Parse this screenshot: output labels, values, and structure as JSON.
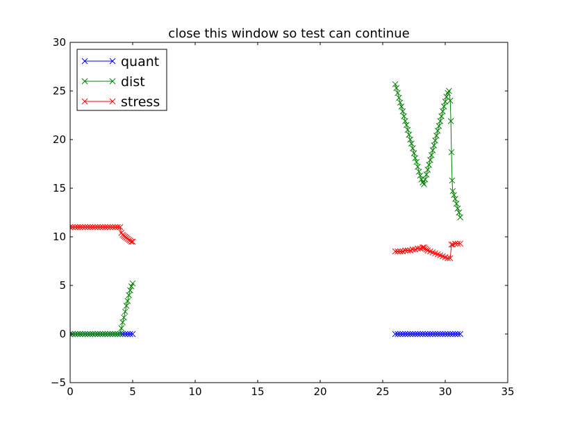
{
  "chart_data": {
    "type": "line",
    "title": "close this window so test can continue",
    "xlabel": "",
    "ylabel": "",
    "xlim": [
      0,
      35
    ],
    "ylim": [
      -5,
      30
    ],
    "xticks": [
      0,
      5,
      10,
      15,
      20,
      25,
      30,
      35
    ],
    "yticks": [
      -5,
      0,
      5,
      10,
      15,
      20,
      25,
      30
    ],
    "grid": false,
    "legend_position": "upper left",
    "marker": "x",
    "series": [
      {
        "name": "quant",
        "color": "#0000ff",
        "segments": [
          [
            [
              0.0,
              0
            ],
            [
              0.2,
              0
            ],
            [
              0.4,
              0
            ],
            [
              0.6,
              0
            ],
            [
              0.8,
              0
            ],
            [
              1.0,
              0
            ],
            [
              1.2,
              0
            ],
            [
              1.4,
              0
            ],
            [
              1.6,
              0
            ],
            [
              1.8,
              0
            ],
            [
              2.0,
              0
            ],
            [
              2.2,
              0
            ],
            [
              2.4,
              0
            ],
            [
              2.6,
              0
            ],
            [
              2.8,
              0
            ],
            [
              3.0,
              0
            ],
            [
              3.2,
              0
            ],
            [
              3.4,
              0
            ],
            [
              3.6,
              0
            ],
            [
              3.8,
              0
            ],
            [
              4.0,
              0
            ],
            [
              4.2,
              0
            ],
            [
              4.4,
              0
            ],
            [
              4.6,
              0
            ],
            [
              4.8,
              0
            ],
            [
              5.0,
              0
            ]
          ],
          [
            [
              26.0,
              0
            ],
            [
              26.2,
              0
            ],
            [
              26.4,
              0
            ],
            [
              26.6,
              0
            ],
            [
              26.8,
              0
            ],
            [
              27.0,
              0
            ],
            [
              27.2,
              0
            ],
            [
              27.4,
              0
            ],
            [
              27.6,
              0
            ],
            [
              27.8,
              0
            ],
            [
              28.0,
              0
            ],
            [
              28.2,
              0
            ],
            [
              28.4,
              0
            ],
            [
              28.6,
              0
            ],
            [
              28.8,
              0
            ],
            [
              29.0,
              0
            ],
            [
              29.2,
              0
            ],
            [
              29.4,
              0
            ],
            [
              29.6,
              0
            ],
            [
              29.8,
              0
            ],
            [
              30.0,
              0
            ],
            [
              30.2,
              0
            ],
            [
              30.4,
              0
            ],
            [
              30.6,
              0
            ],
            [
              30.8,
              0
            ],
            [
              31.0,
              0
            ],
            [
              31.2,
              0
            ]
          ]
        ]
      },
      {
        "name": "dist",
        "color": "#008000",
        "segments": [
          [
            [
              0.0,
              0
            ],
            [
              0.2,
              0
            ],
            [
              0.4,
              0
            ],
            [
              0.6,
              0
            ],
            [
              0.8,
              0
            ],
            [
              1.0,
              0
            ],
            [
              1.2,
              0
            ],
            [
              1.4,
              0
            ],
            [
              1.6,
              0
            ],
            [
              1.8,
              0
            ],
            [
              2.0,
              0
            ],
            [
              2.2,
              0
            ],
            [
              2.4,
              0
            ],
            [
              2.6,
              0
            ],
            [
              2.8,
              0
            ],
            [
              3.0,
              0
            ],
            [
              3.2,
              0
            ],
            [
              3.4,
              0
            ],
            [
              3.6,
              0
            ],
            [
              3.8,
              0
            ],
            [
              4.0,
              0
            ],
            [
              4.1,
              0.6
            ],
            [
              4.2,
              1.2
            ],
            [
              4.3,
              1.7
            ],
            [
              4.4,
              2.3
            ],
            [
              4.5,
              2.9
            ],
            [
              4.6,
              3.4
            ],
            [
              4.7,
              4.0
            ],
            [
              4.8,
              4.5
            ],
            [
              4.9,
              4.9
            ],
            [
              5.0,
              5.2
            ]
          ],
          [
            [
              26.0,
              25.7
            ],
            [
              26.1,
              25.3
            ],
            [
              26.2,
              24.8
            ],
            [
              26.3,
              24.3
            ],
            [
              26.4,
              23.8
            ],
            [
              26.5,
              23.4
            ],
            [
              26.6,
              22.9
            ],
            [
              26.7,
              22.4
            ],
            [
              26.8,
              21.9
            ],
            [
              26.9,
              21.5
            ],
            [
              27.0,
              21.0
            ],
            [
              27.1,
              20.5
            ],
            [
              27.2,
              20.0
            ],
            [
              27.3,
              19.6
            ],
            [
              27.4,
              19.1
            ],
            [
              27.5,
              18.6
            ],
            [
              27.6,
              18.1
            ],
            [
              27.7,
              17.7
            ],
            [
              27.8,
              17.2
            ],
            [
              27.9,
              16.7
            ],
            [
              28.0,
              16.3
            ],
            [
              28.1,
              15.9
            ],
            [
              28.2,
              15.6
            ],
            [
              28.3,
              15.4
            ],
            [
              28.4,
              15.9
            ],
            [
              28.5,
              16.4
            ],
            [
              28.6,
              16.9
            ],
            [
              28.7,
              17.4
            ],
            [
              28.8,
              17.9
            ],
            [
              28.9,
              18.4
            ],
            [
              29.0,
              18.9
            ],
            [
              29.1,
              19.4
            ],
            [
              29.2,
              19.9
            ],
            [
              29.3,
              20.4
            ],
            [
              29.4,
              20.9
            ],
            [
              29.5,
              21.4
            ],
            [
              29.6,
              21.9
            ],
            [
              29.7,
              22.4
            ],
            [
              29.8,
              22.9
            ],
            [
              29.9,
              23.4
            ],
            [
              30.0,
              23.9
            ],
            [
              30.1,
              24.4
            ],
            [
              30.2,
              24.8
            ],
            [
              30.3,
              25.0
            ],
            [
              30.4,
              24.0
            ],
            [
              30.45,
              21.9
            ],
            [
              30.5,
              18.7
            ],
            [
              30.55,
              15.8
            ],
            [
              30.6,
              14.7
            ],
            [
              30.7,
              14.3
            ],
            [
              30.8,
              13.9
            ],
            [
              30.9,
              13.4
            ],
            [
              31.0,
              12.9
            ],
            [
              31.1,
              12.5
            ],
            [
              31.2,
              12.0
            ]
          ]
        ]
      },
      {
        "name": "stress",
        "color": "#ff0000",
        "segments": [
          [
            [
              0.0,
              11
            ],
            [
              0.2,
              11
            ],
            [
              0.4,
              11
            ],
            [
              0.6,
              11
            ],
            [
              0.8,
              11
            ],
            [
              1.0,
              11
            ],
            [
              1.2,
              11
            ],
            [
              1.4,
              11
            ],
            [
              1.6,
              11
            ],
            [
              1.8,
              11
            ],
            [
              2.0,
              11
            ],
            [
              2.2,
              11
            ],
            [
              2.4,
              11
            ],
            [
              2.6,
              11
            ],
            [
              2.8,
              11
            ],
            [
              3.0,
              11
            ],
            [
              3.2,
              11
            ],
            [
              3.4,
              11
            ],
            [
              3.6,
              11
            ],
            [
              3.8,
              11
            ],
            [
              4.0,
              11
            ],
            [
              4.1,
              10.4
            ],
            [
              4.2,
              10.2
            ],
            [
              4.3,
              10.1
            ],
            [
              4.4,
              10.0
            ],
            [
              4.5,
              9.9
            ],
            [
              4.6,
              9.8
            ],
            [
              4.7,
              9.7
            ],
            [
              4.8,
              9.6
            ],
            [
              4.9,
              9.5
            ],
            [
              5.0,
              9.5
            ]
          ],
          [
            [
              26.0,
              8.5
            ],
            [
              26.2,
              8.5
            ],
            [
              26.4,
              8.5
            ],
            [
              26.6,
              8.5
            ],
            [
              26.8,
              8.6
            ],
            [
              27.0,
              8.6
            ],
            [
              27.2,
              8.6
            ],
            [
              27.4,
              8.7
            ],
            [
              27.6,
              8.7
            ],
            [
              27.8,
              8.8
            ],
            [
              28.0,
              8.8
            ],
            [
              28.2,
              8.9
            ],
            [
              28.3,
              8.9
            ],
            [
              28.4,
              8.8
            ],
            [
              28.5,
              8.7
            ],
            [
              28.6,
              8.6
            ],
            [
              28.8,
              8.5
            ],
            [
              29.0,
              8.4
            ],
            [
              29.2,
              8.3
            ],
            [
              29.4,
              8.2
            ],
            [
              29.6,
              8.1
            ],
            [
              29.8,
              8.0
            ],
            [
              30.0,
              7.9
            ],
            [
              30.2,
              7.8
            ],
            [
              30.4,
              7.8
            ],
            [
              30.5,
              9.2
            ],
            [
              30.6,
              9.2
            ],
            [
              30.8,
              9.3
            ],
            [
              31.0,
              9.3
            ],
            [
              31.2,
              9.3
            ]
          ]
        ]
      }
    ]
  }
}
